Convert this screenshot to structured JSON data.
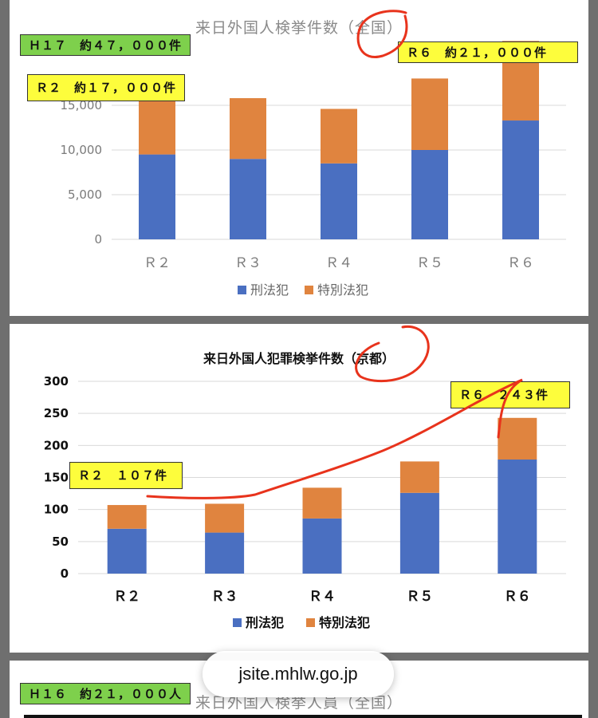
{
  "charts": [
    {
      "title": "来日外国人検挙件数（全国）",
      "colors": {
        "criminal": "#4a6fc1",
        "special": "#e0843f"
      },
      "notes": [
        {
          "text": "Ｈ１７　約４７，０００件",
          "bg": "#7ed04c"
        },
        {
          "text": "Ｒ２　約１７，０００件",
          "bg": "#fdfd3c"
        },
        {
          "text": "Ｒ６　約２１，０００件",
          "bg": "#fdfd3c"
        }
      ]
    },
    {
      "title": "来日外国人犯罪検挙件数（京都）",
      "colors": {
        "criminal": "#4a6fc1",
        "special": "#e0843f"
      },
      "notes": [
        {
          "text": "Ｒ２　１０７件",
          "bg": "#fdfd3c"
        },
        {
          "text": "Ｒ６　２４３件",
          "bg": "#fdfd3c"
        }
      ]
    },
    {
      "title": "来日外国人検挙人員（全国）",
      "notes": [
        {
          "text": "Ｈ１６　約２１，０００人",
          "bg": "#7ed04c"
        }
      ]
    }
  ],
  "chart_data": [
    {
      "type": "bar",
      "stacked": true,
      "title": "来日外国人検挙件数（全国）",
      "categories": [
        "Ｒ２",
        "Ｒ３",
        "Ｒ４",
        "Ｒ５",
        "Ｒ６"
      ],
      "series": [
        {
          "name": "刑法犯",
          "values": [
            9500,
            9000,
            8500,
            10000,
            13300
          ]
        },
        {
          "name": "特別法犯",
          "values": [
            8300,
            6800,
            6100,
            8000,
            8900
          ]
        }
      ],
      "yticks": [
        "0",
        "5,000",
        "10,000",
        "15,000"
      ],
      "ylim": [
        0,
        22500
      ],
      "legend": "bottom",
      "grid": true
    },
    {
      "type": "bar",
      "stacked": true,
      "title": "来日外国人犯罪検挙件数（京都）",
      "categories": [
        "Ｒ２",
        "Ｒ３",
        "Ｒ４",
        "Ｒ５",
        "Ｒ６"
      ],
      "series": [
        {
          "name": "刑法犯",
          "values": [
            70,
            64,
            86,
            126,
            178
          ]
        },
        {
          "name": "特別法犯",
          "values": [
            37,
            45,
            48,
            49,
            65
          ]
        }
      ],
      "yticks": [
        "0",
        "50",
        "100",
        "150",
        "200",
        "250",
        "300"
      ],
      "ylim": [
        0,
        300
      ],
      "legend": "bottom",
      "grid": true
    }
  ],
  "url": "jsite.mhlw.go.jp"
}
